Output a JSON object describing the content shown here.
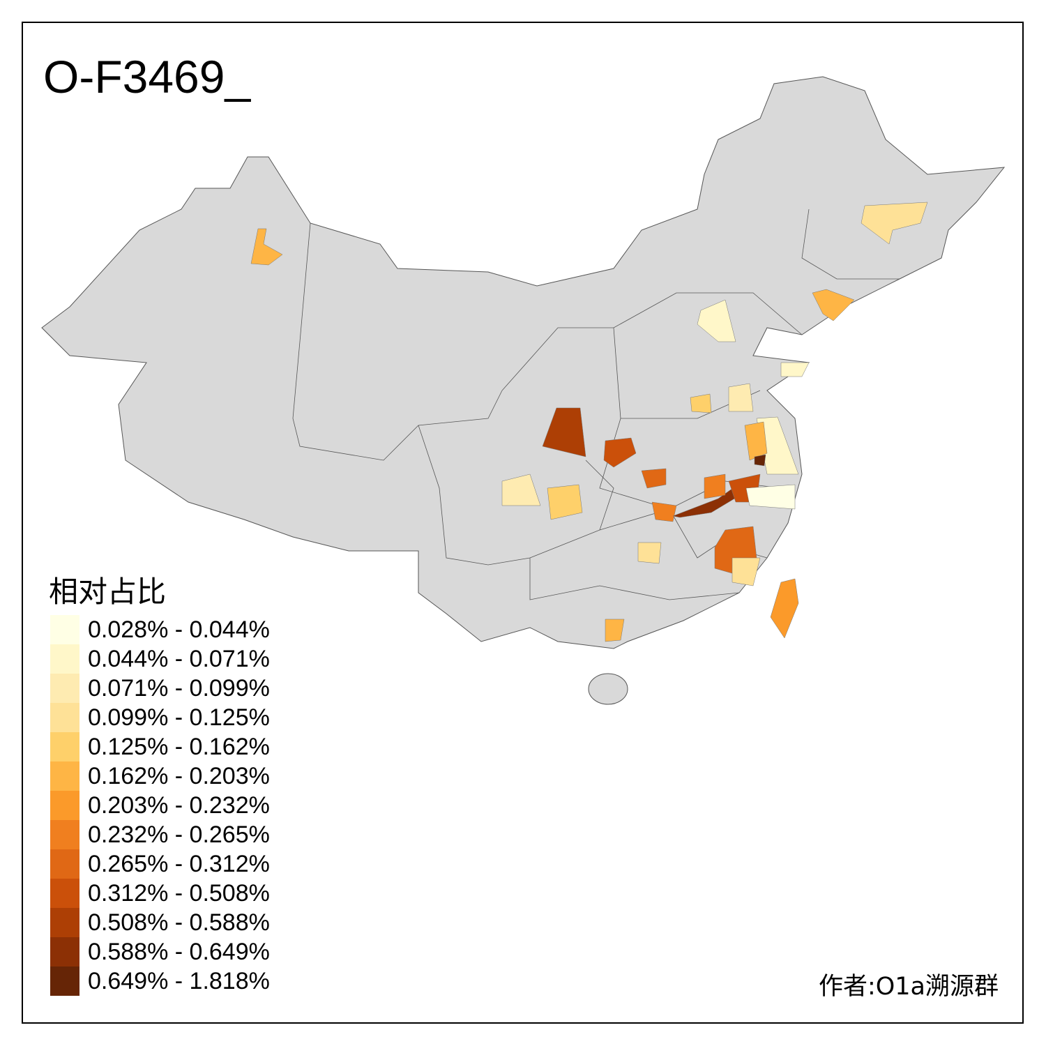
{
  "title": "O-F3469_",
  "legend": {
    "title": "相对占比",
    "items": [
      {
        "label": "0.028% - 0.044%",
        "color": "#FFFFE5"
      },
      {
        "label": "0.044% - 0.071%",
        "color": "#FFF7C9"
      },
      {
        "label": "0.071% - 0.099%",
        "color": "#FEEBB1"
      },
      {
        "label": "0.099% - 0.125%",
        "color": "#FEE197"
      },
      {
        "label": "0.125% - 0.162%",
        "color": "#FED06A"
      },
      {
        "label": "0.162% - 0.203%",
        "color": "#FEB545"
      },
      {
        "label": "0.203% - 0.232%",
        "color": "#FB9A2A"
      },
      {
        "label": "0.232% - 0.265%",
        "color": "#F07F1F"
      },
      {
        "label": "0.265% - 0.312%",
        "color": "#E06815"
      },
      {
        "label": "0.312% - 0.508%",
        "color": "#CB500A"
      },
      {
        "label": "0.508% - 0.588%",
        "color": "#AD3F05"
      },
      {
        "label": "0.588% - 0.649%",
        "color": "#8C3005"
      },
      {
        "label": "0.649% - 1.818%",
        "color": "#662506"
      }
    ]
  },
  "author": "作者:O1a溯源群",
  "base_color": "#D9D9D9"
}
